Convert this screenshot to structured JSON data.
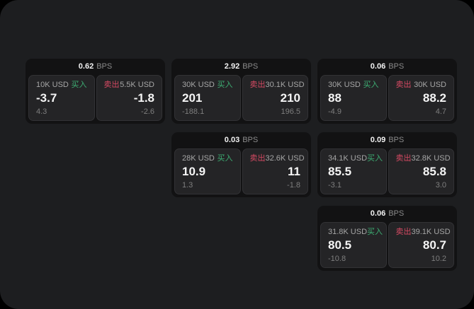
{
  "labels": {
    "buy": "买入",
    "sell": "卖出",
    "bps_unit": "BPS"
  },
  "colors": {
    "buy_green": "#3dae73",
    "sell_red": "#d64a63",
    "surface": "#1d1e20",
    "card_bg": "#121213",
    "panel_bg": "#242426"
  },
  "cards": [
    {
      "bps": "0.62",
      "buy": {
        "amount": "10K USD",
        "price": "-3.7",
        "delta": "4.3"
      },
      "sell": {
        "amount": "5.5K USD",
        "price": "-1.8",
        "delta": "-2.6"
      }
    },
    {
      "bps": "2.92",
      "buy": {
        "amount": "30K USD",
        "price": "201",
        "delta": "-188.1"
      },
      "sell": {
        "amount": "30.1K USD",
        "price": "210",
        "delta": "196.5"
      }
    },
    {
      "bps": "0.06",
      "buy": {
        "amount": "30K USD",
        "price": "88",
        "delta": "-4.9"
      },
      "sell": {
        "amount": "30K USD",
        "price": "88.2",
        "delta": "4.7"
      }
    },
    {
      "bps": "0.03",
      "buy": {
        "amount": "28K USD",
        "price": "10.9",
        "delta": "1.3"
      },
      "sell": {
        "amount": "32.6K USD",
        "price": "11",
        "delta": "-1.8"
      }
    },
    {
      "bps": "0.09",
      "buy": {
        "amount": "34.1K USD",
        "price": "85.5",
        "delta": "-3.1"
      },
      "sell": {
        "amount": "32.8K USD",
        "price": "85.8",
        "delta": "3.0"
      }
    },
    {
      "bps": "0.06",
      "buy": {
        "amount": "31.8K USD",
        "price": "80.5",
        "delta": "-10.8"
      },
      "sell": {
        "amount": "39.1K USD",
        "price": "80.7",
        "delta": "10.2"
      }
    }
  ]
}
